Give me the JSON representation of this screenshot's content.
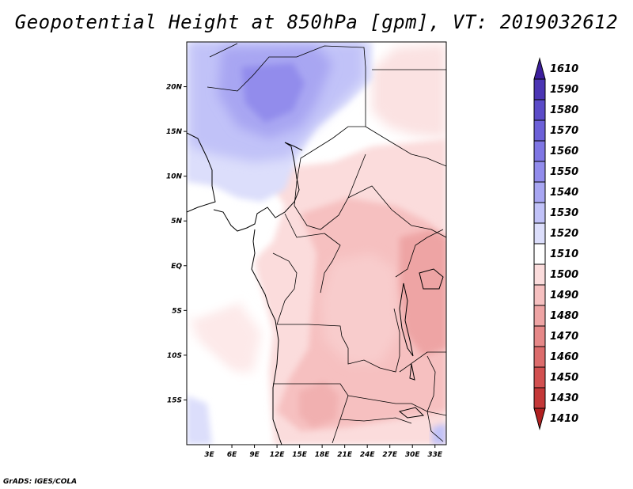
{
  "title": "Geopotential Height at 850hPa [gpm], VT: 2019032612",
  "credit": "GrADS: IGES/COLA",
  "map": {
    "lat_labels": [
      "20N",
      "15N",
      "10N",
      "5N",
      "EQ",
      "5S",
      "10S",
      "15S"
    ],
    "lat_values": [
      20,
      15,
      10,
      5,
      0,
      -5,
      -10,
      -15
    ],
    "lon_labels": [
      "3E",
      "6E",
      "9E",
      "12E",
      "15E",
      "18E",
      "21E",
      "24E",
      "27E",
      "30E",
      "33E"
    ],
    "lon_values": [
      3,
      6,
      9,
      12,
      15,
      18,
      21,
      24,
      27,
      30,
      33
    ],
    "lat_range": [
      -20,
      25
    ],
    "lon_range": [
      0,
      34.5
    ]
  },
  "colorbar": {
    "labels": [
      "1610",
      "1590",
      "1580",
      "1570",
      "1560",
      "1550",
      "1540",
      "1530",
      "1520",
      "1510",
      "1500",
      "1490",
      "1480",
      "1470",
      "1460",
      "1450",
      "1430",
      "1410"
    ],
    "colors": [
      "#3c1e9c",
      "#4b35b4",
      "#5b4bc8",
      "#6c60d8",
      "#7f76e4",
      "#928cec",
      "#a8a6f2",
      "#c1c2f8",
      "#dcdefb",
      "#ffffff",
      "#fbdcdc",
      "#f6c0c0",
      "#eea4a4",
      "#e68888",
      "#dc6c6c",
      "#d25050",
      "#c43838",
      "#b02020"
    ]
  }
}
